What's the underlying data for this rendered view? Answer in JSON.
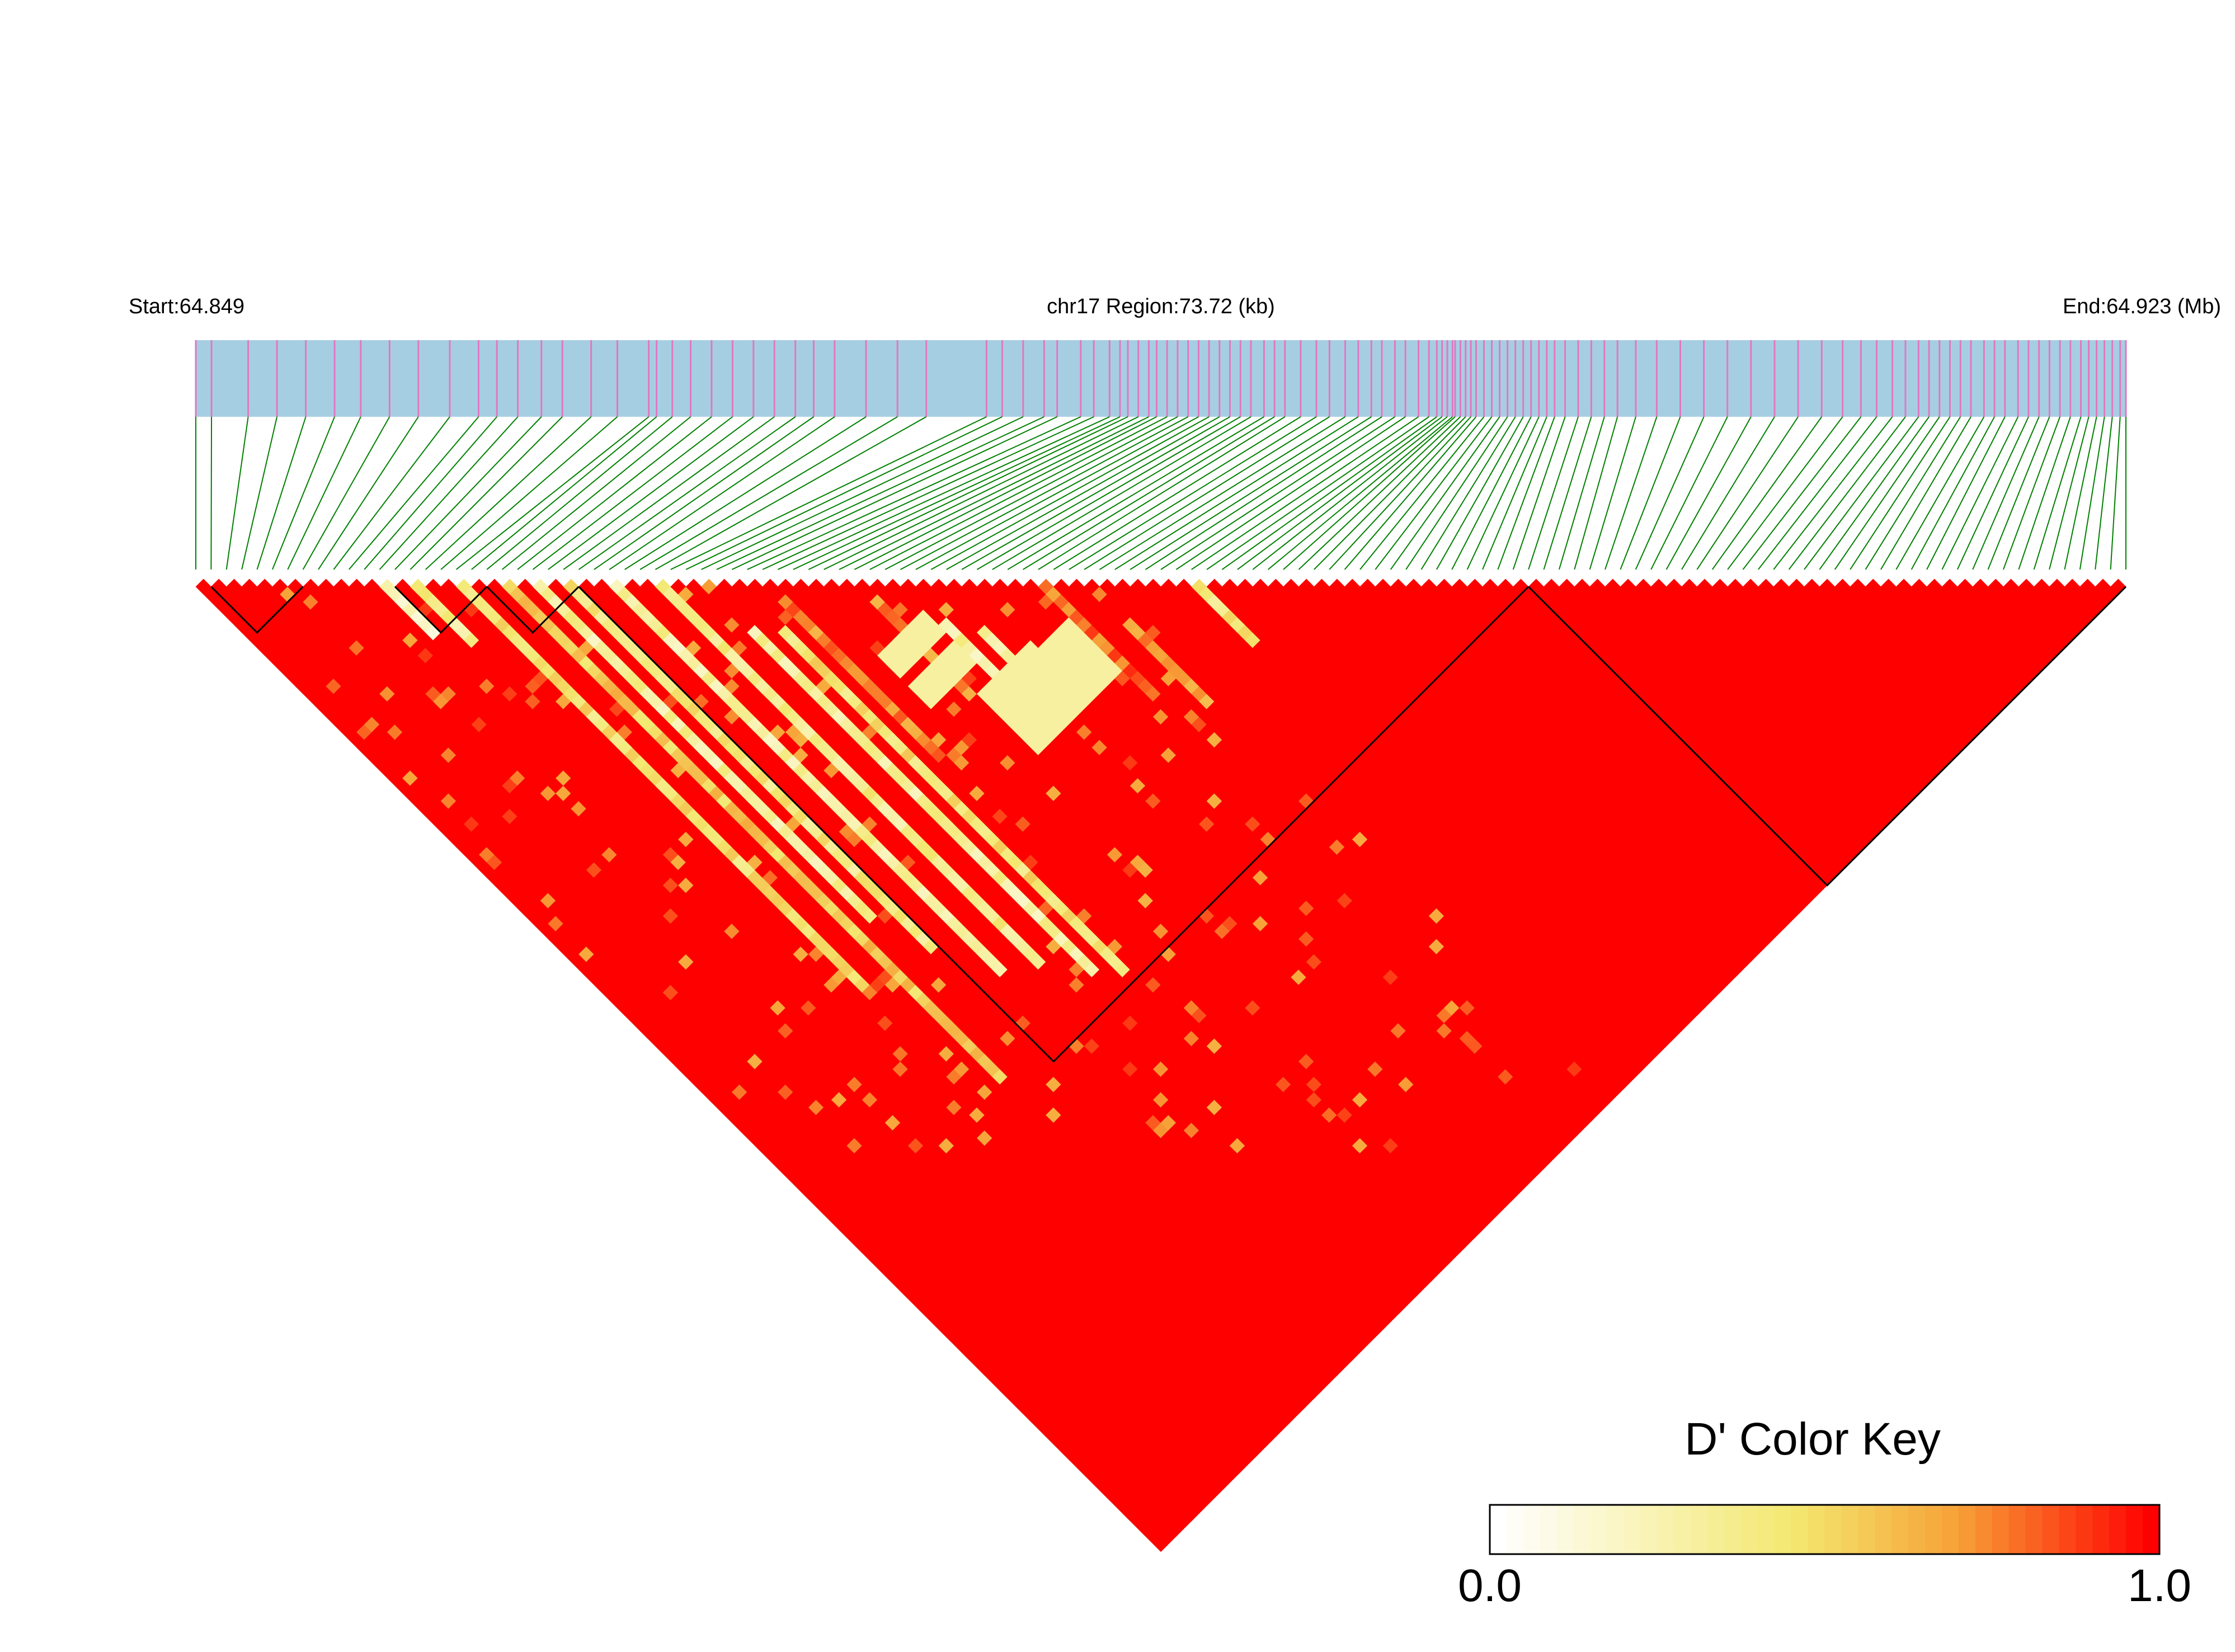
{
  "chart_data": {
    "type": "heatmap",
    "chromosome": "chr17",
    "header": {
      "start_label": "Start:64.849",
      "region_label": "chr17 Region:73.72 (kb)",
      "end_label": "End:64.923 (Mb)"
    },
    "start_mb": 64.849,
    "end_mb": 64.923,
    "region_kb": 73.72,
    "snp_count": 127,
    "snp_positions_kb": [
      0.0,
      0.6,
      2.0,
      3.1,
      4.2,
      5.3,
      6.3,
      7.4,
      8.5,
      9.7,
      10.8,
      11.5,
      12.3,
      13.2,
      14.0,
      15.1,
      16.1,
      17.3,
      17.6,
      18.2,
      18.9,
      19.7,
      20.5,
      21.3,
      22.1,
      22.9,
      23.6,
      24.4,
      25.6,
      26.8,
      27.9,
      30.2,
      30.8,
      31.6,
      32.4,
      32.9,
      33.8,
      34.3,
      34.9,
      35.3,
      35.6,
      36.0,
      36.4,
      36.7,
      37.1,
      37.5,
      37.9,
      38.3,
      38.7,
      39.1,
      39.5,
      39.9,
      40.3,
      40.8,
      41.2,
      41.6,
      42.2,
      42.8,
      43.3,
      43.9,
      44.4,
      44.9,
      45.3,
      45.8,
      46.2,
      46.7,
      47.1,
      47.4,
      47.6,
      47.8,
      48.0,
      48.1,
      48.3,
      48.5,
      48.7,
      48.9,
      49.2,
      49.5,
      49.8,
      50.1,
      50.4,
      50.7,
      51.0,
      51.3,
      51.6,
      51.9,
      52.3,
      52.8,
      53.3,
      53.8,
      54.3,
      55.0,
      55.8,
      56.7,
      57.6,
      58.5,
      59.4,
      60.3,
      61.2,
      62.1,
      62.9,
      63.6,
      64.2,
      64.8,
      65.3,
      65.8,
      66.2,
      66.6,
      67.0,
      67.4,
      67.8,
      68.3,
      68.7,
      69.1,
      69.6,
      70.0,
      70.4,
      70.8,
      71.2,
      71.6,
      72.0,
      72.3,
      72.6,
      72.9,
      73.2,
      73.5,
      73.72
    ],
    "haplotype_blocks": [
      {
        "from_snp": 1,
        "to_snp": 7
      },
      {
        "from_snp": 13,
        "to_snp": 19
      },
      {
        "from_snp": 19,
        "to_snp": 25
      },
      {
        "from_snp": 25,
        "to_snp": 87
      },
      {
        "from_snp": 87,
        "to_snp": 126
      }
    ],
    "ld_pattern": {
      "background_d_prime": 1.0,
      "diagonal_bands": [
        {
          "snp_a": 12,
          "snp_b_from": 13,
          "snp_b_to": 19,
          "d_prime": 0.15
        },
        {
          "snp_a": 14,
          "snp_b_from": 15,
          "snp_b_to": 22,
          "d_prime": 0.35
        },
        {
          "snp_a": 17,
          "snp_b_from": 18,
          "snp_b_to": 70,
          "d_prime": 0.45
        },
        {
          "snp_a": 20,
          "snp_b_from": 21,
          "snp_b_to": 85,
          "d_prime": 0.55
        },
        {
          "snp_a": 22,
          "snp_b_from": 23,
          "snp_b_to": 66,
          "d_prime": 0.3
        },
        {
          "snp_a": 24,
          "snp_b_from": 25,
          "snp_b_to": 72,
          "d_prime": 0.4
        },
        {
          "snp_a": 27,
          "snp_b_from": 28,
          "snp_b_to": 78,
          "d_prime": 0.3
        },
        {
          "snp_a": 30,
          "snp_b_from": 31,
          "snp_b_to": 80,
          "d_prime": 0.35
        },
        {
          "snp_a": 33,
          "snp_b_from": 40,
          "snp_b_to": 84,
          "d_prime": 0.3
        },
        {
          "snp_a": 35,
          "snp_b_from": 42,
          "snp_b_to": 86,
          "d_prime": 0.45
        },
        {
          "snp_a": 37,
          "snp_b_from": 40,
          "snp_b_to": 60,
          "d_prime": 0.75
        },
        {
          "snp_a": 43,
          "snp_b_from": 46,
          "snp_b_to": 58,
          "d_prime": 0.75
        },
        {
          "snp_a": 46,
          "snp_b_from": 52,
          "snp_b_to": 62,
          "d_prime": 0.3
        },
        {
          "snp_a": 48,
          "snp_b_from": 55,
          "snp_b_to": 60,
          "d_prime": 0.3
        },
        {
          "snp_a": 55,
          "snp_b_from": 56,
          "snp_b_to": 70,
          "d_prime": 0.8
        },
        {
          "snp_a": 58,
          "snp_b_from": 64,
          "snp_b_to": 74,
          "d_prime": 0.7
        },
        {
          "snp_a": 65,
          "snp_b_from": 66,
          "snp_b_to": 73,
          "d_prime": 0.4
        }
      ],
      "low_ld_patches": [
        {
          "snp_a_from": 40,
          "snp_a_to": 45,
          "snp_b_from": 50,
          "snp_b_to": 52,
          "d_prime": 0.3
        },
        {
          "snp_a_from": 40,
          "snp_a_to": 45,
          "snp_b_from": 54,
          "snp_b_to": 56,
          "d_prime": 0.3
        },
        {
          "snp_a_from": 44,
          "snp_a_to": 50,
          "snp_b_from": 59,
          "snp_b_to": 66,
          "d_prime": 0.3
        },
        {
          "snp_a_from": 48,
          "snp_a_to": 54,
          "snp_b_from": 60,
          "snp_b_to": 66,
          "d_prime": 0.3
        }
      ]
    },
    "color_key": {
      "title": "D' Color Key",
      "min_label": "0.0",
      "max_label": "1.0",
      "min": 0.0,
      "max": 1.0,
      "stops": [
        "#ffffff",
        "#f3e870",
        "#f7a338",
        "#ff0000"
      ]
    },
    "colors": {
      "gene_track_fill": "#a6cee3",
      "snp_tick": "#e377c2",
      "connector_line": "#008000",
      "high_ld": "#ff0000"
    }
  }
}
